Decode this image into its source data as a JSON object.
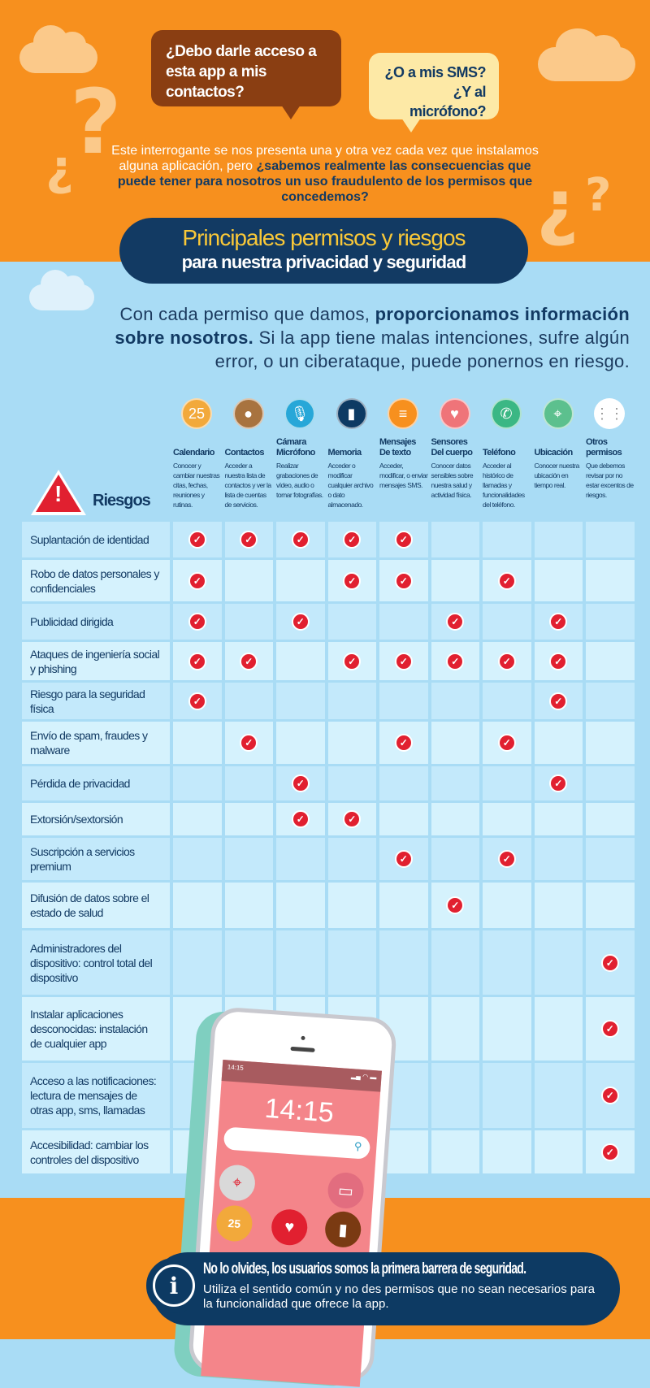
{
  "bubbles": {
    "q1": "¿Debo darle acceso a esta app a mis contactos?",
    "q2": "¿O a mis SMS? ¿Y al micrófono?"
  },
  "intro": {
    "text": "Este interrogante se nos presenta una y otra vez cada vez que instalamos alguna aplicación, pero ",
    "bold": "¿sabemos realmente las consecuencias que puede tener para nosotros un uso fraudulento de los permisos que concedemos?"
  },
  "title": {
    "line1": "Principales permisos y riesgos",
    "line2": "para nuestra privacidad y seguridad"
  },
  "lead": {
    "text1": "Con cada permiso que damos, ",
    "bold": "proporcionamos información sobre nosotros.",
    "text2": " Si la app tiene malas intenciones, sufre algún error, o un ciberataque, puede ponernos en riesgo."
  },
  "risks_label": "Riesgos",
  "columns": [
    {
      "name": "Calendario",
      "desc": "Conocer y cambiar nuestras citas, fechas, reuniones y rutinas.",
      "icon": "calendar-icon",
      "glyph": "25",
      "color": "#f2a93b"
    },
    {
      "name": "Contactos",
      "desc": "Acceder a nuestra lista de contactos y ver la lista de cuentas de servicios.",
      "icon": "contact-icon",
      "glyph": "●",
      "color": "#a8733f"
    },
    {
      "name": "Cámara Micrófono",
      "desc": "Realizar grabaciones de vídeo, audio o tomar fotografías.",
      "icon": "microphone-icon",
      "glyph": "🎙",
      "color": "#27a7d8"
    },
    {
      "name": "Memoria",
      "desc": "Acceder o modificar cualquier archivo o dato almacenado.",
      "icon": "sd-card-icon",
      "glyph": "▮",
      "color": "#0d3a63"
    },
    {
      "name": "Mensajes De texto",
      "desc": "Acceder, modificar, o enviar mensajes SMS.",
      "icon": "message-icon",
      "glyph": "≡",
      "color": "#f7901e"
    },
    {
      "name": "Sensores Del cuerpo",
      "desc": "Conocer datos sensibles sobre nuestra salud y actividad física.",
      "icon": "heart-icon",
      "glyph": "♥",
      "color": "#ef7479"
    },
    {
      "name": "Teléfono",
      "desc": "Acceder al histórico de llamadas y funcionalidades del teléfono.",
      "icon": "phone-icon",
      "glyph": "✆",
      "color": "#3bb784"
    },
    {
      "name": "Ubicación",
      "desc": "Conocer nuestra ubicación en tiempo real.",
      "icon": "map-pin-icon",
      "glyph": "⌖",
      "color": "#5cc08e"
    },
    {
      "name": "Otros permisos",
      "desc": "Que debemos revisar por no estar excentos de riesgos.",
      "icon": "grid-icon",
      "glyph": "⋮⋮",
      "color": "#ffffff"
    }
  ],
  "rows": [
    {
      "label": "Suplantación de identidad",
      "checks": [
        0,
        1,
        2,
        3,
        4
      ]
    },
    {
      "label": "Robo de datos personales y confidenciales",
      "checks": [
        0,
        3,
        4,
        6
      ]
    },
    {
      "label": "Publicidad dirigida",
      "checks": [
        0,
        2,
        5,
        7
      ]
    },
    {
      "label": "Ataques de ingeniería social y phishing",
      "checks": [
        0,
        1,
        3,
        4,
        5,
        6,
        7
      ]
    },
    {
      "label": "Riesgo para la seguridad física",
      "checks": [
        0,
        7
      ]
    },
    {
      "label": "Envío de spam, fraudes y malware",
      "checks": [
        1,
        4,
        6
      ]
    },
    {
      "label": "Pérdida de privacidad",
      "checks": [
        2,
        7
      ]
    },
    {
      "label": "Extorsión/sextorsión",
      "checks": [
        2,
        3
      ]
    },
    {
      "label": "Suscripción a servicios premium",
      "checks": [
        4,
        6
      ]
    },
    {
      "label": "Difusión de datos sobre el estado de salud",
      "checks": [
        5
      ]
    },
    {
      "label": "Administradores del dispositivo: control total del dispositivo",
      "checks": [
        8
      ]
    },
    {
      "label": "Instalar aplicaciones desconocidas: instalación de cualquier app",
      "checks": [
        8
      ]
    },
    {
      "label": "Acceso a las notificaciones: lectura de mensajes de otras app, sms, llamadas",
      "checks": [
        8
      ]
    },
    {
      "label": "Accesibilidad: cambiar los controles del dispositivo",
      "checks": [
        8
      ]
    }
  ],
  "phone": {
    "status_time": "14:15",
    "clock": "14:15",
    "calendar_day": "25"
  },
  "banner": {
    "headline": "No lo olvides, los usuarios somos la primera barrera de seguridad.",
    "text": "Utiliza el sentido común y no des permisos que no sean necesarios para la funcionalidad que ofrece la app."
  }
}
